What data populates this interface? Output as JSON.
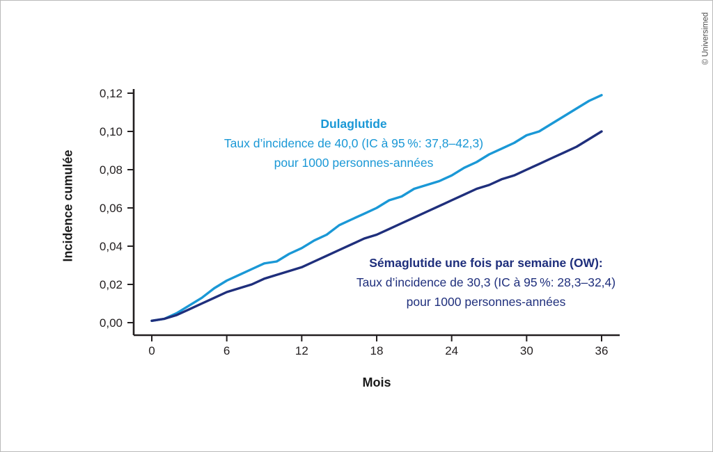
{
  "watermark": "© Universimed",
  "colors": {
    "dulaglutide": "#1a98d6",
    "semaglutide": "#1f2f7c",
    "axis": "#231f20"
  },
  "annotations": {
    "dulaglutide": {
      "title": "Dulaglutide",
      "line2": "Taux d’incidence de 40,0 (IC à 95 %: 37,8–42,3)",
      "line3": "pour 1000 personnes-années"
    },
    "semaglutide": {
      "title": "Sémaglutide une fois par semaine (OW):",
      "line2": "Taux d’incidence de 30,3 (IC à 95 %: 28,3–32,4)",
      "line3": "pour 1000 personnes-années"
    }
  },
  "chart_data": {
    "type": "line",
    "title": "",
    "xlabel": "Mois",
    "ylabel": "Incidence cumulée",
    "xlim": [
      0,
      36
    ],
    "ylim": [
      0,
      0.12
    ],
    "grid": false,
    "legend_position": "inline-annotations",
    "x_tick_labels": [
      "0",
      "6",
      "12",
      "18",
      "24",
      "30",
      "36"
    ],
    "x_tick_values": [
      0,
      6,
      12,
      18,
      24,
      30,
      36
    ],
    "y_tick_labels": [
      "0,00",
      "0,02",
      "0,04",
      "0,06",
      "0,08",
      "0,10",
      "0,12"
    ],
    "y_tick_values": [
      0,
      0.02,
      0.04,
      0.06,
      0.08,
      0.1,
      0.12
    ],
    "x": [
      0,
      1,
      2,
      3,
      4,
      5,
      6,
      7,
      8,
      9,
      10,
      11,
      12,
      13,
      14,
      15,
      16,
      17,
      18,
      19,
      20,
      21,
      22,
      23,
      24,
      25,
      26,
      27,
      28,
      29,
      30,
      31,
      32,
      33,
      34,
      35,
      36
    ],
    "series": [
      {
        "name": "Dulaglutide",
        "color": "#1a98d6",
        "values": [
          0.001,
          0.002,
          0.005,
          0.009,
          0.013,
          0.018,
          0.022,
          0.025,
          0.028,
          0.031,
          0.032,
          0.036,
          0.039,
          0.043,
          0.046,
          0.051,
          0.054,
          0.057,
          0.06,
          0.064,
          0.066,
          0.07,
          0.072,
          0.074,
          0.077,
          0.081,
          0.084,
          0.088,
          0.091,
          0.094,
          0.098,
          0.1,
          0.104,
          0.108,
          0.112,
          0.116,
          0.119
        ]
      },
      {
        "name": "Sémaglutide une fois par semaine (OW)",
        "color": "#1f2f7c",
        "values": [
          0.001,
          0.002,
          0.004,
          0.007,
          0.01,
          0.013,
          0.016,
          0.018,
          0.02,
          0.023,
          0.025,
          0.027,
          0.029,
          0.032,
          0.035,
          0.038,
          0.041,
          0.044,
          0.046,
          0.049,
          0.052,
          0.055,
          0.058,
          0.061,
          0.064,
          0.067,
          0.07,
          0.072,
          0.075,
          0.077,
          0.08,
          0.083,
          0.086,
          0.089,
          0.092,
          0.096,
          0.1
        ]
      }
    ]
  }
}
